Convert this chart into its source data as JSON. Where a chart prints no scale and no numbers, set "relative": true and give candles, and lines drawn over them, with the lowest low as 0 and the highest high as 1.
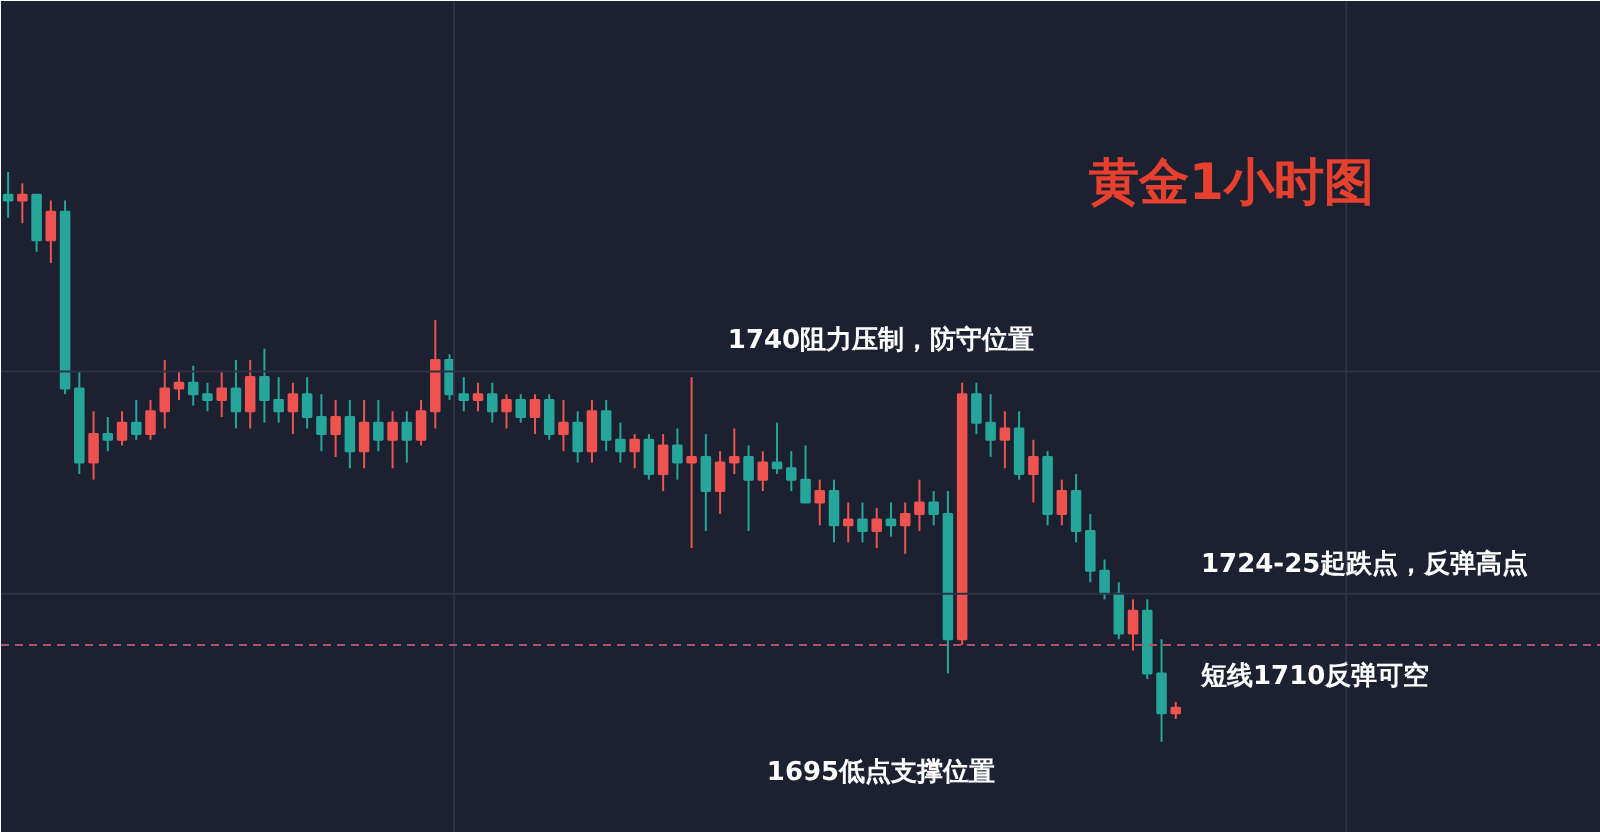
{
  "chart_data": {
    "type": "candlestick",
    "title": "黄金1小时图",
    "relative": true,
    "grid": true,
    "categories": [
      null,
      null,
      null,
      null,
      null,
      null,
      null,
      null,
      null,
      null,
      null,
      null,
      null,
      null,
      null,
      null,
      null,
      null,
      null,
      null,
      null,
      null,
      null,
      null,
      null,
      null,
      null,
      null,
      null,
      null,
      null,
      null,
      null,
      null,
      null,
      null,
      null,
      null,
      null,
      null,
      null,
      null,
      null,
      null,
      null,
      null,
      null,
      null,
      null,
      null,
      null,
      null,
      null,
      null,
      null,
      null,
      null,
      null,
      null,
      null,
      null,
      null,
      null,
      null,
      null,
      null,
      null,
      null,
      null,
      null,
      null,
      null,
      null,
      null,
      null,
      null,
      null,
      null,
      null,
      null,
      null,
      null,
      null
    ],
    "ohlc": [
      [
        0.96,
        1.0,
        0.92,
        0.95
      ],
      [
        0.95,
        0.98,
        0.91,
        0.96
      ],
      [
        0.96,
        0.96,
        0.86,
        0.88
      ],
      [
        0.88,
        0.95,
        0.84,
        0.93
      ],
      [
        0.93,
        0.95,
        0.61,
        0.62
      ],
      [
        0.62,
        0.65,
        0.47,
        0.49
      ],
      [
        0.49,
        0.58,
        0.46,
        0.54
      ],
      [
        0.54,
        0.57,
        0.51,
        0.53
      ],
      [
        0.53,
        0.58,
        0.52,
        0.56
      ],
      [
        0.56,
        0.6,
        0.53,
        0.54
      ],
      [
        0.54,
        0.6,
        0.53,
        0.58
      ],
      [
        0.58,
        0.67,
        0.55,
        0.62
      ],
      [
        0.62,
        0.65,
        0.6,
        0.63
      ],
      [
        0.63,
        0.66,
        0.59,
        0.61
      ],
      [
        0.61,
        0.63,
        0.58,
        0.6
      ],
      [
        0.6,
        0.65,
        0.57,
        0.62
      ],
      [
        0.62,
        0.67,
        0.55,
        0.58
      ],
      [
        0.58,
        0.67,
        0.55,
        0.64
      ],
      [
        0.64,
        0.69,
        0.56,
        0.6
      ],
      [
        0.6,
        0.64,
        0.56,
        0.58
      ],
      [
        0.58,
        0.63,
        0.54,
        0.61
      ],
      [
        0.61,
        0.64,
        0.55,
        0.57
      ],
      [
        0.57,
        0.61,
        0.51,
        0.54
      ],
      [
        0.54,
        0.6,
        0.5,
        0.57
      ],
      [
        0.57,
        0.6,
        0.48,
        0.51
      ],
      [
        0.51,
        0.6,
        0.48,
        0.56
      ],
      [
        0.56,
        0.6,
        0.51,
        0.53
      ],
      [
        0.53,
        0.58,
        0.48,
        0.56
      ],
      [
        0.56,
        0.58,
        0.49,
        0.53
      ],
      [
        0.53,
        0.6,
        0.52,
        0.58
      ],
      [
        0.58,
        0.74,
        0.55,
        0.67
      ],
      [
        0.67,
        0.68,
        0.6,
        0.61
      ],
      [
        0.61,
        0.64,
        0.58,
        0.6
      ],
      [
        0.6,
        0.63,
        0.58,
        0.61
      ],
      [
        0.61,
        0.63,
        0.56,
        0.58
      ],
      [
        0.58,
        0.61,
        0.55,
        0.6
      ],
      [
        0.6,
        0.61,
        0.56,
        0.57
      ],
      [
        0.57,
        0.61,
        0.54,
        0.6
      ],
      [
        0.6,
        0.61,
        0.53,
        0.54
      ],
      [
        0.54,
        0.6,
        0.51,
        0.56
      ],
      [
        0.56,
        0.58,
        0.49,
        0.51
      ],
      [
        0.51,
        0.6,
        0.49,
        0.58
      ],
      [
        0.58,
        0.6,
        0.51,
        0.53
      ],
      [
        0.53,
        0.56,
        0.49,
        0.51
      ],
      [
        0.51,
        0.54,
        0.48,
        0.53
      ],
      [
        0.53,
        0.54,
        0.46,
        0.47
      ],
      [
        0.47,
        0.54,
        0.44,
        0.52
      ],
      [
        0.52,
        0.55,
        0.46,
        0.49
      ],
      [
        0.49,
        0.64,
        0.34,
        0.5
      ],
      [
        0.5,
        0.54,
        0.37,
        0.44
      ],
      [
        0.44,
        0.51,
        0.4,
        0.49
      ],
      [
        0.49,
        0.55,
        0.47,
        0.5
      ],
      [
        0.5,
        0.52,
        0.37,
        0.46
      ],
      [
        0.46,
        0.51,
        0.44,
        0.49
      ],
      [
        0.49,
        0.56,
        0.47,
        0.48
      ],
      [
        0.48,
        0.51,
        0.44,
        0.46
      ],
      [
        0.46,
        0.52,
        0.42,
        0.42
      ],
      [
        0.42,
        0.46,
        0.38,
        0.44
      ],
      [
        0.44,
        0.46,
        0.35,
        0.38
      ],
      [
        0.38,
        0.42,
        0.35,
        0.39
      ],
      [
        0.39,
        0.42,
        0.35,
        0.37
      ],
      [
        0.37,
        0.41,
        0.34,
        0.39
      ],
      [
        0.39,
        0.42,
        0.36,
        0.38
      ],
      [
        0.38,
        0.42,
        0.33,
        0.4
      ],
      [
        0.4,
        0.46,
        0.37,
        0.42
      ],
      [
        0.42,
        0.44,
        0.38,
        0.4
      ],
      [
        0.4,
        0.44,
        0.12,
        0.18
      ],
      [
        0.18,
        0.63,
        0.17,
        0.61
      ],
      [
        0.61,
        0.63,
        0.54,
        0.56
      ],
      [
        0.56,
        0.61,
        0.5,
        0.53
      ],
      [
        0.53,
        0.58,
        0.48,
        0.55
      ],
      [
        0.55,
        0.58,
        0.46,
        0.47
      ],
      [
        0.47,
        0.53,
        0.42,
        0.5
      ],
      [
        0.5,
        0.51,
        0.38,
        0.4
      ],
      [
        0.4,
        0.46,
        0.38,
        0.44
      ],
      [
        0.44,
        0.47,
        0.35,
        0.37
      ],
      [
        0.37,
        0.4,
        0.28,
        0.3
      ],
      [
        0.3,
        0.32,
        0.25,
        0.26
      ],
      [
        0.26,
        0.28,
        0.18,
        0.19
      ],
      [
        0.19,
        0.25,
        0.16,
        0.23
      ],
      [
        0.23,
        0.25,
        0.11,
        0.12
      ],
      [
        0.12,
        0.18,
        0.0,
        0.05
      ],
      [
        0.05,
        0.07,
        0.04,
        0.06
      ]
    ],
    "colors": [
      "#26a69a",
      "#ef5350",
      "#26a69a",
      "#ef5350",
      "#26a69a",
      "#26a69a",
      "#ef5350",
      "#26a69a",
      "#ef5350",
      "#26a69a",
      "#ef5350",
      "#ef5350",
      "#ef5350",
      "#26a69a",
      "#26a69a",
      "#ef5350",
      "#26a69a",
      "#ef5350",
      "#26a69a",
      "#26a69a",
      "#ef5350",
      "#26a69a",
      "#26a69a",
      "#ef5350",
      "#26a69a",
      "#ef5350",
      "#26a69a",
      "#ef5350",
      "#26a69a",
      "#ef5350",
      "#ef5350",
      "#26a69a",
      "#26a69a",
      "#ef5350",
      "#26a69a",
      "#ef5350",
      "#26a69a",
      "#ef5350",
      "#26a69a",
      "#ef5350",
      "#26a69a",
      "#ef5350",
      "#26a69a",
      "#26a69a",
      "#ef5350",
      "#26a69a",
      "#ef5350",
      "#26a69a",
      "#ef5350",
      "#26a69a",
      "#ef5350",
      "#ef5350",
      "#26a69a",
      "#ef5350",
      "#26a69a",
      "#26a69a",
      "#26a69a",
      "#ef5350",
      "#26a69a",
      "#ef5350",
      "#26a69a",
      "#ef5350",
      "#26a69a",
      "#ef5350",
      "#ef5350",
      "#26a69a",
      "#26a69a",
      "#ef5350",
      "#26a69a",
      "#26a69a",
      "#ef5350",
      "#26a69a",
      "#ef5350",
      "#26a69a",
      "#ef5350",
      "#26a69a",
      "#26a69a",
      "#26a69a",
      "#26a69a",
      "#ef5350",
      "#26a69a",
      "#26a69a",
      "#ef5350"
    ],
    "ref_lines": [
      {
        "axis": "y",
        "value": 0.17,
        "color": "#b0506a",
        "line_style": "dashed"
      }
    ],
    "annotations": [
      "1740阻力压制，防守位置",
      "1724-25起跌点，反弹高点",
      "短线1710反弹可空",
      "1695低点支撑位置"
    ]
  }
}
